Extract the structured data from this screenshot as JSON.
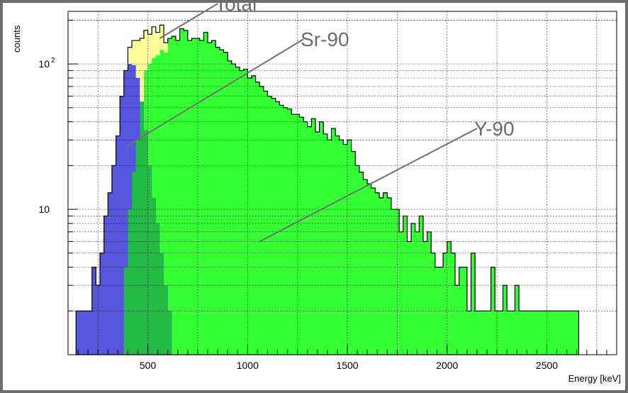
{
  "chart_data": {
    "type": "histogram",
    "title": "",
    "xlabel": "Energy [keV]",
    "ylabel": "counts",
    "xlim": [
      100,
      2850
    ],
    "ylim": [
      1,
      230
    ],
    "yscale": "log",
    "grid": true,
    "xticks": [
      500,
      1000,
      1500,
      2000,
      2500
    ],
    "yticks": [
      {
        "value": 10,
        "label": "10"
      },
      {
        "value": 100,
        "label": "10",
        "sup": "2"
      }
    ],
    "bin_width": 20,
    "x_start": 140,
    "series": [
      {
        "name": "Total",
        "color": "#ffff99",
        "values": [
          2,
          2,
          2,
          2,
          4,
          3,
          5,
          9,
          13,
          20,
          32,
          60,
          90,
          130,
          145,
          145,
          150,
          170,
          160,
          180,
          165,
          185,
          140,
          150,
          155,
          145,
          175,
          170,
          145,
          150,
          150,
          145,
          165,
          140,
          145,
          130,
          125,
          120,
          105,
          100,
          95,
          90,
          92,
          80,
          83,
          75,
          70,
          65,
          60,
          58,
          55,
          52,
          50,
          49,
          45,
          45,
          43,
          40,
          37,
          42,
          34,
          40,
          33,
          30,
          36,
          32,
          30,
          28,
          30,
          25,
          20,
          18,
          16,
          15,
          14,
          13,
          12,
          13,
          12,
          10,
          10,
          7,
          9,
          6,
          8,
          7,
          9,
          6,
          7,
          5,
          4,
          4,
          5,
          6,
          5,
          3,
          4,
          4,
          2,
          5,
          2,
          2,
          2,
          2,
          4,
          2,
          2,
          3,
          2,
          2,
          3,
          2,
          2,
          2,
          2,
          2,
          2,
          2,
          2,
          2,
          2,
          2,
          2,
          2,
          2,
          2
        ]
      },
      {
        "name": "Sr-90",
        "color": "#5555dd",
        "values": [
          2,
          2,
          2,
          2,
          4,
          3,
          5,
          9,
          13,
          20,
          32,
          60,
          90,
          100,
          98,
          80,
          55,
          35,
          20,
          12,
          8,
          5,
          3,
          2
        ]
      },
      {
        "name": "Y-90",
        "color": "#33ff33",
        "values": [
          1,
          1,
          1,
          1,
          1,
          1,
          1,
          1,
          1,
          1,
          1,
          1,
          4,
          10,
          18,
          30,
          55,
          90,
          100,
          110,
          115,
          125,
          120,
          150,
          155,
          145,
          175,
          170,
          145,
          150,
          150,
          145,
          165,
          140,
          145,
          130,
          125,
          120,
          105,
          100,
          95,
          90,
          92,
          80,
          83,
          75,
          70,
          65,
          60,
          58,
          55,
          52,
          50,
          49,
          45,
          45,
          43,
          40,
          37,
          42,
          34,
          40,
          33,
          30,
          36,
          32,
          30,
          28,
          30,
          25,
          20,
          18,
          16,
          15,
          14,
          13,
          12,
          13,
          12,
          10,
          10,
          7,
          9,
          6,
          8,
          7,
          9,
          6,
          7,
          5,
          4,
          4,
          5,
          6,
          5,
          3,
          4,
          4,
          2,
          5,
          2,
          2,
          2,
          2,
          4,
          2,
          2,
          3,
          2,
          2,
          3,
          2,
          2,
          2,
          2,
          2,
          2,
          2,
          2,
          2,
          2,
          2,
          2,
          2,
          2,
          2
        ]
      }
    ],
    "annotations": [
      {
        "text": "Total",
        "line_from": [
          560,
          150
        ],
        "line_to": [
          850,
          260
        ]
      },
      {
        "text": "Sr-90",
        "line_from": [
          390,
          27
        ],
        "line_to": [
          1280,
          148
        ]
      },
      {
        "text": "Y-90",
        "line_from": [
          1060,
          6
        ],
        "line_to": [
          2150,
          36
        ]
      }
    ]
  }
}
